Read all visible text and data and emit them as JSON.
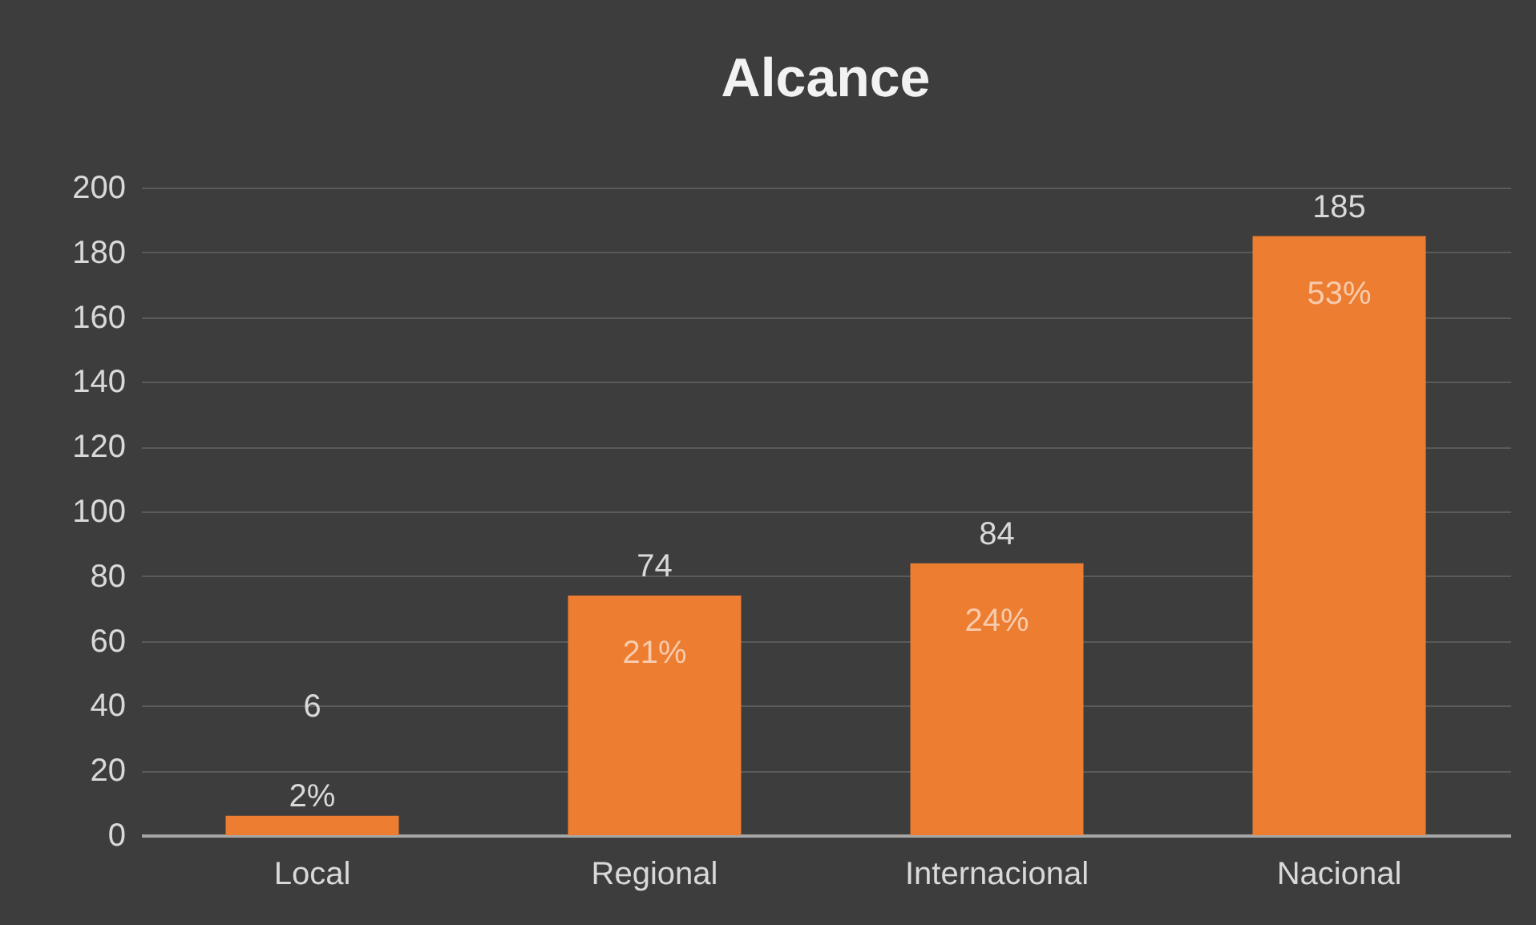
{
  "chart_data": {
    "type": "bar",
    "title": "Alcance",
    "categories": [
      "Local",
      "Regional",
      "Internacional",
      "Nacional"
    ],
    "values": [
      6,
      74,
      84,
      185
    ],
    "annotations": [
      {
        "text": "2%",
        "x": "Local",
        "y": 6
      },
      {
        "text": "21%",
        "x": "Regional",
        "y": 74
      },
      {
        "text": "24%",
        "x": "Internacional",
        "y": 84
      },
      {
        "text": "53%",
        "x": "Nacional",
        "y": 185
      }
    ],
    "data_labels": true,
    "color": "#ed7d31",
    "ylim": [
      0,
      200
    ],
    "yticks": [
      0,
      20,
      40,
      60,
      80,
      100,
      120,
      140,
      160,
      180,
      200
    ],
    "grid": "y"
  }
}
